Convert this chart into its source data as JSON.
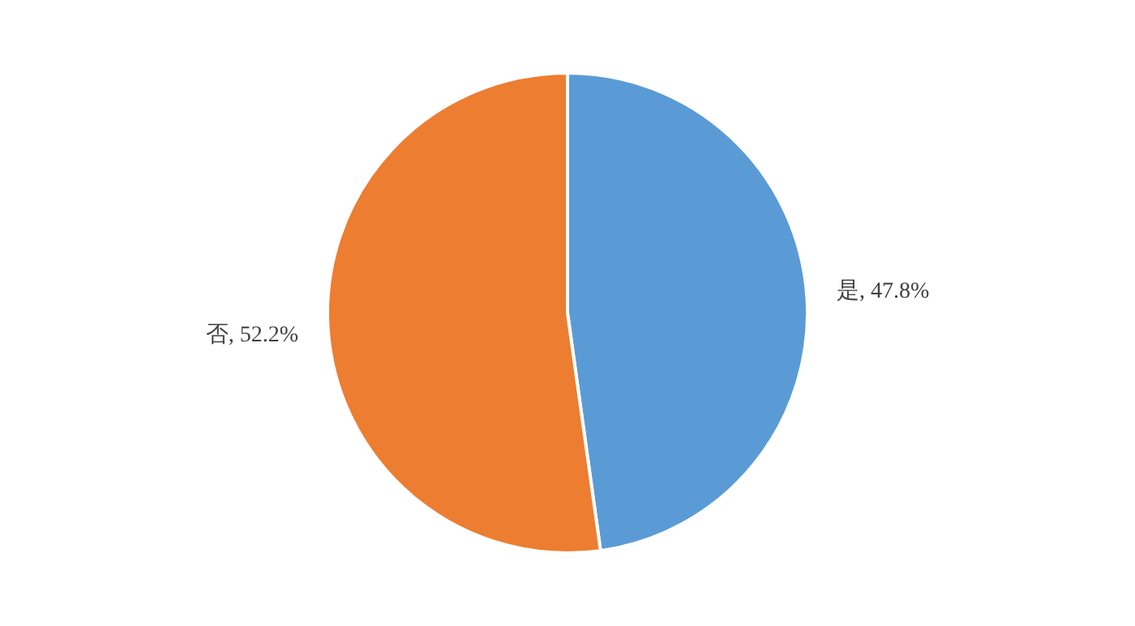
{
  "chart_data": {
    "type": "pie",
    "categories": [
      "是",
      "否"
    ],
    "values": [
      47.8,
      52.2
    ],
    "colors": [
      "#5b9bd5",
      "#ed7d31"
    ],
    "value_labels": [
      "47.8%",
      "52.2%"
    ],
    "legend": false
  }
}
